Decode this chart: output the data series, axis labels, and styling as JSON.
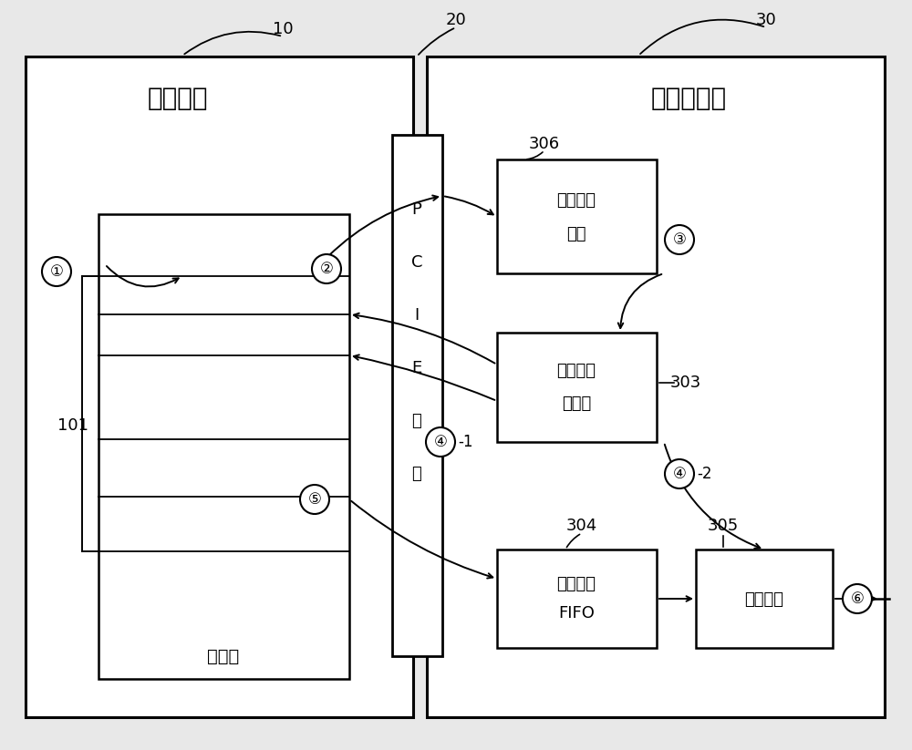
{
  "bg_color": "#e8e8e8",
  "white": "#ffffff",
  "black": "#000000",
  "num_10": "10",
  "num_20": "20",
  "num_30": "30",
  "num_101": "101",
  "num_303": "303",
  "num_304": "304",
  "num_305": "305",
  "num_306": "306",
  "label_user_process": "用户进程",
  "label_nic": "网络接口卡",
  "label_pcie_line1": "P",
  "label_pcie_line2": "C",
  "label_pcie_line3": "I",
  "label_pcie_line4": "E",
  "label_pcie_line5": "总",
  "label_pcie_line6": "线",
  "label_hw_queue_l1": "硬件发送",
  "label_hw_queue_l2": "队列",
  "label_desc_l1": "描述符处",
  "label_desc_l2": "理逻辑",
  "label_msg_fifo_l1": "消息数据",
  "label_msg_fifo_l2": "FIFO",
  "label_send_logic": "发送逻辑",
  "label_data_area": "数据区",
  "circle_1": "①",
  "circle_2": "②",
  "circle_3": "③",
  "circle_4": "④",
  "circle_5": "⑤",
  "circle_6": "⑥",
  "dash_1": "-1",
  "dash_2": "-2"
}
